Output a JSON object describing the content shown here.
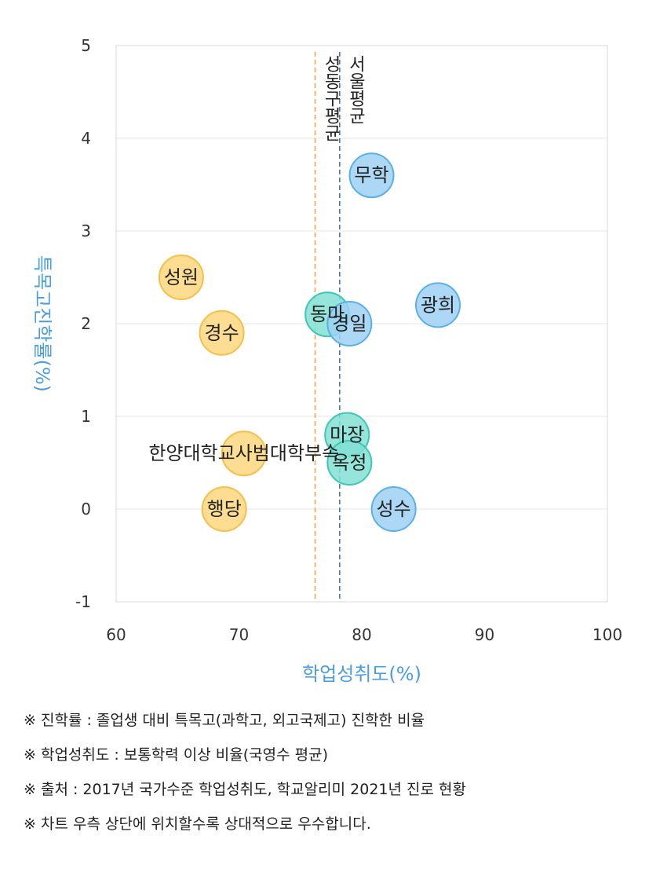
{
  "chart_data": {
    "type": "scatter",
    "xlabel": "학업성취도(%)",
    "ylabel": "특목고진학률(%)",
    "xlim": [
      60,
      100
    ],
    "ylim": [
      -1,
      5
    ],
    "xticks": [
      "60",
      "70",
      "80",
      "90",
      "100"
    ],
    "yticks": [
      "-1",
      "0",
      "1",
      "2",
      "3",
      "4",
      "5"
    ],
    "grid": true,
    "colors": {
      "yellow_fill": "#fbd77f",
      "yellow_stroke": "#f4c04b",
      "blue_fill": "#9dd1f3",
      "blue_stroke": "#5bb0e8",
      "teal_fill": "#83e0d3",
      "teal_stroke": "#3ec7b5",
      "orange_line": "#f0a23a",
      "navy_line": "#3a6ea5"
    },
    "points": [
      {
        "label": "무학",
        "x": 80.8,
        "y": 3.6,
        "color": "blue"
      },
      {
        "label": "광희",
        "x": 86.2,
        "y": 2.2,
        "color": "blue"
      },
      {
        "label": "성수",
        "x": 82.6,
        "y": 0.0,
        "color": "blue"
      },
      {
        "label": "성원",
        "x": 65.3,
        "y": 2.5,
        "color": "yellow"
      },
      {
        "label": "경수",
        "x": 68.6,
        "y": 1.9,
        "color": "yellow"
      },
      {
        "label": "한양대학교사범대학부속",
        "x": 70.4,
        "y": 0.6,
        "color": "yellow"
      },
      {
        "label": "행당",
        "x": 68.8,
        "y": 0.0,
        "color": "yellow"
      },
      {
        "label": "동마",
        "x": 77.2,
        "y": 2.1,
        "color": "teal"
      },
      {
        "label": "경일",
        "x": 79.0,
        "y": 2.0,
        "color": "blue"
      },
      {
        "label": "마장",
        "x": 78.8,
        "y": 0.8,
        "color": "teal"
      },
      {
        "label": "옥정",
        "x": 79.0,
        "y": 0.5,
        "color": "teal"
      }
    ],
    "reference_lines": [
      {
        "label": "성동구평균",
        "x": 76.2,
        "color": "orange"
      },
      {
        "label": "서울평균",
        "x": 78.2,
        "color": "navy"
      }
    ]
  },
  "notes": [
    "※ 진학률 : 졸업생 대비 특목고(과학고, 외고국제고) 진학한 비율",
    "※ 학업성취도 : 보통학력 이상 비율(국영수 평균)",
    "※ 출처 : 2017년 국가수준 학업성취도, 학교알리미 2021년 진로 현황",
    "※ 차트 우측 상단에 위치할수록 상대적으로 우수합니다."
  ]
}
